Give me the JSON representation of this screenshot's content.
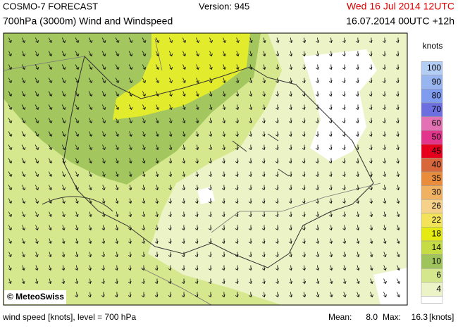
{
  "header": {
    "title": "COSMO-7 FORECAST",
    "version": "Version: 945",
    "valid_time": "Wed 16 Jul 2014 12UTC",
    "subtitle": "700hPa (3000m) Wind and Windspeed",
    "run": "16.07.2014 00UTC +12h"
  },
  "legend": {
    "title": "knots",
    "levels": [
      {
        "label": "100",
        "color": "#b4cdf5"
      },
      {
        "label": "90",
        "color": "#98b5f0"
      },
      {
        "label": "80",
        "color": "#7f9cee"
      },
      {
        "label": "70",
        "color": "#6d6fe0"
      },
      {
        "label": "60",
        "color": "#e272b4"
      },
      {
        "label": "50",
        "color": "#e2358c"
      },
      {
        "label": "45",
        "color": "#e6001e"
      },
      {
        "label": "40",
        "color": "#d8683a"
      },
      {
        "label": "35",
        "color": "#e98c3c"
      },
      {
        "label": "30",
        "color": "#f0b262"
      },
      {
        "label": "26",
        "color": "#f5d18a"
      },
      {
        "label": "22",
        "color": "#f2e35a"
      },
      {
        "label": "18",
        "color": "#e4ea12"
      },
      {
        "label": "14",
        "color": "#c6dc44"
      },
      {
        "label": "10",
        "color": "#a0c45c"
      },
      {
        "label": "6",
        "color": "#d4e78c"
      },
      {
        "label": "4",
        "color": "#ecf3c6"
      }
    ]
  },
  "credit": "© MeteoSwiss",
  "footer": {
    "description": "wind speed [knots], level = 700 hPa",
    "mean_label": "Mean:",
    "mean": "8.0",
    "max_label": "Max:",
    "max": "16.3",
    "unit": "[knots]"
  }
}
